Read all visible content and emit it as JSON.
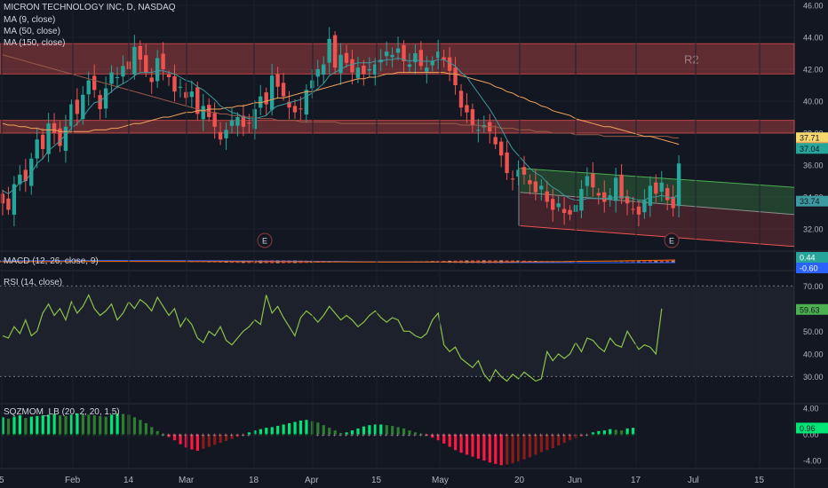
{
  "header": {
    "title": "MICRON TECHNOLOGY INC, D, NASDAQ",
    "indicators": [
      "MA (9, close)",
      "MA (50, close)",
      "MA (150, close)"
    ]
  },
  "panes": {
    "macd_label": "MACD (12, 26, close, 9)",
    "rsi_label": "RSI (14, close)",
    "sqz_label": "SQZMOM_LB (20, 2, 20, 1.5)"
  },
  "colors": {
    "background": "#131722",
    "up": "#26a69a",
    "down": "#ef5350",
    "ma9": "#3c9aa0",
    "ma50": "#f2a35b",
    "ma150": "#9c5b48",
    "rsi": "#8bc34a",
    "zone": "#ef5350",
    "channel_upper": "#4caf50",
    "channel_lower": "#ef5350"
  },
  "chart_data": [
    {
      "type": "candlestick",
      "title": "MICRON TECHNOLOGY INC, D, NASDAQ",
      "ylim": [
        31,
        46
      ],
      "yticks": [
        "46.00",
        "44.00",
        "42.00",
        "40.00",
        "38.00",
        "36.00",
        "34.00",
        "32.00"
      ],
      "xticks": [
        "5",
        "Feb",
        "14",
        "Mar",
        "18",
        "Apr",
        "15",
        "May",
        "20",
        "Jun",
        "17",
        "Jul",
        "15"
      ],
      "price_labels": [
        {
          "text": "37.71",
          "value": 37.71,
          "color": "#f5d76e"
        },
        {
          "text": "37.12",
          "value": 37.12,
          "color": "#f2a35b"
        },
        {
          "text": "37.04",
          "value": 37.04,
          "color": "#26a69a"
        },
        {
          "text": "33.74",
          "value": 33.74,
          "color": "#3c9aa0"
        }
      ],
      "zones": [
        {
          "label": "R2",
          "from": 41.7,
          "to": 43.6
        },
        {
          "label": "",
          "from": 38.0,
          "to": 38.8
        }
      ],
      "earnings_markers": [
        {
          "label": "E",
          "x": "Mar 20"
        },
        {
          "label": "E",
          "x": "Jun 25"
        }
      ],
      "channel": {
        "start": "May 20",
        "upper": [
          35.8,
          34.6
        ],
        "middle": [
          34.3,
          32.9
        ],
        "lower": [
          32.2,
          30.9
        ]
      },
      "closes": [
        33.6,
        33.2,
        34.8,
        35.4,
        35.0,
        36.4,
        37.6,
        37.0,
        38.6,
        38.0,
        37.2,
        38.4,
        39.8,
        39.2,
        40.4,
        41.3,
        40.7,
        39.5,
        40.8,
        41.8,
        41.5,
        42.2,
        42.0,
        43.4,
        42.6,
        41.8,
        41.2,
        42.7,
        42.0,
        41.5,
        40.6,
        40.9,
        40.2,
        40.6,
        39.2,
        39.7,
        39.0,
        38.4,
        37.6,
        38.2,
        38.8,
        39.0,
        38.4,
        38.6,
        39.5,
        40.3,
        39.8,
        41.6,
        40.9,
        40.3,
        39.6,
        39.3,
        39.5,
        40.7,
        41.3,
        42.0,
        42.3,
        43.9,
        42.1,
        42.9,
        42.4,
        41.8,
        42.1,
        41.7,
        42.0,
        42.3,
        42.6,
        43.1,
        42.9,
        43.3,
        42.5,
        42.3,
        43.0,
        42.2,
        42.1,
        42.5,
        43.1,
        42.6,
        41.9,
        41.0,
        39.6,
        39.3,
        38.5,
        38.2,
        38.5,
        38.1,
        37.3,
        36.6,
        35.5,
        35.1,
        35.7,
        35.4,
        34.8,
        34.3,
        34.7,
        33.7,
        33.2,
        33.6,
        33.0,
        32.9,
        33.5,
        34.5,
        35.3,
        34.6,
        34.1,
        33.7,
        34.1,
        35.2,
        33.9,
        33.6,
        33.2,
        32.9,
        33.8,
        34.7,
        34.2,
        34.9,
        33.8,
        33.3,
        36.1
      ],
      "ma9": [
        34.4,
        34.2,
        34.5,
        34.9,
        35.0,
        35.5,
        36.1,
        36.4,
        36.9,
        37.2,
        37.5,
        37.9,
        38.3,
        38.6,
        39.0,
        39.5,
        39.9,
        40.0,
        40.3,
        40.6,
        40.9,
        41.1,
        41.3,
        41.6,
        41.8,
        41.8,
        41.8,
        41.9,
        41.9,
        41.8,
        41.7,
        41.5,
        41.3,
        41.2,
        40.9,
        40.7,
        40.4,
        40.1,
        39.7,
        39.5,
        39.3,
        39.2,
        39.0,
        38.9,
        38.9,
        39.0,
        39.1,
        39.5,
        39.7,
        39.8,
        39.9,
        40.0,
        40.1,
        40.3,
        40.5,
        40.8,
        41.1,
        41.6,
        41.8,
        42.0,
        42.2,
        42.3,
        42.4,
        42.4,
        42.4,
        42.5,
        42.5,
        42.6,
        42.6,
        42.7,
        42.6,
        42.5,
        42.6,
        42.5,
        42.5,
        42.5,
        42.6,
        42.6,
        42.4,
        42.2,
        41.8,
        41.5,
        41.0,
        40.5,
        40.0,
        39.5,
        38.9,
        38.3,
        37.6,
        37.0,
        36.6,
        36.2,
        35.8,
        35.5,
        35.3,
        34.9,
        34.6,
        34.4,
        34.1,
        33.9,
        33.8,
        33.8,
        33.9,
        33.9,
        33.9,
        33.9,
        33.9,
        34.0,
        34.0,
        34.0,
        33.9,
        33.8,
        33.8,
        34.0,
        34.0,
        34.1,
        34.0,
        33.9,
        34.2
      ],
      "ma50": [
        38.6,
        38.5,
        38.5,
        38.4,
        38.4,
        38.3,
        38.3,
        38.2,
        38.2,
        38.2,
        38.1,
        38.1,
        38.1,
        38.1,
        38.1,
        38.1,
        38.2,
        38.2,
        38.2,
        38.3,
        38.3,
        38.4,
        38.5,
        38.6,
        38.6,
        38.7,
        38.8,
        38.9,
        39.0,
        39.0,
        39.1,
        39.2,
        39.3,
        39.3,
        39.4,
        39.4,
        39.5,
        39.5,
        39.5,
        39.6,
        39.6,
        39.7,
        39.7,
        39.8,
        39.9,
        39.9,
        40.0,
        40.1,
        40.2,
        40.2,
        40.3,
        40.4,
        40.5,
        40.6,
        40.6,
        40.7,
        40.8,
        40.9,
        41.0,
        41.1,
        41.2,
        41.3,
        41.4,
        41.4,
        41.5,
        41.5,
        41.6,
        41.7,
        41.7,
        41.8,
        41.8,
        41.8,
        41.8,
        41.8,
        41.8,
        41.8,
        41.8,
        41.8,
        41.7,
        41.7,
        41.6,
        41.5,
        41.4,
        41.3,
        41.2,
        41.1,
        40.9,
        40.8,
        40.6,
        40.5,
        40.3,
        40.2,
        40.0,
        39.9,
        39.7,
        39.6,
        39.4,
        39.3,
        39.2,
        39.1,
        38.9,
        38.8,
        38.7,
        38.6,
        38.5,
        38.4,
        38.4,
        38.3,
        38.2,
        38.1,
        38.0,
        37.9,
        37.8,
        37.8,
        37.7,
        37.6,
        37.5,
        37.4,
        37.3
      ],
      "ma150": [
        42.9,
        42.8,
        42.7,
        42.6,
        42.5,
        42.4,
        42.3,
        42.2,
        42.1,
        42.0,
        41.9,
        41.8,
        41.7,
        41.6,
        41.5,
        41.4,
        41.3,
        41.2,
        41.1,
        41.0,
        40.9,
        40.8,
        40.7,
        40.6,
        40.5,
        40.4,
        40.3,
        40.2,
        40.1,
        40.0,
        39.9,
        39.8,
        39.7,
        39.6,
        39.5,
        39.4,
        39.3,
        39.3,
        39.2,
        39.2,
        39.1,
        39.1,
        39.0,
        39.0,
        39.0,
        38.9,
        38.9,
        38.9,
        38.8,
        38.8,
        38.8,
        38.8,
        38.7,
        38.7,
        38.7,
        38.7,
        38.7,
        38.7,
        38.7,
        38.6,
        38.6,
        38.6,
        38.6,
        38.6,
        38.6,
        38.6,
        38.6,
        38.6,
        38.6,
        38.6,
        38.6,
        38.6,
        38.6,
        38.6,
        38.6,
        38.6,
        38.6,
        38.6,
        38.6,
        38.6,
        38.5,
        38.5,
        38.5,
        38.5,
        38.4,
        38.4,
        38.4,
        38.3,
        38.3,
        38.3,
        38.2,
        38.2,
        38.2,
        38.1,
        38.1,
        38.1,
        38.0,
        38.0,
        38.0,
        38.0,
        37.9,
        37.9,
        37.9,
        37.9,
        37.9,
        37.8,
        37.8,
        37.8,
        37.8,
        37.8,
        37.8,
        37.8,
        37.8,
        37.8,
        37.8,
        37.8,
        37.8,
        37.7,
        37.7
      ]
    },
    {
      "type": "line",
      "title": "MACD (12, 26, close, 9)",
      "price_labels": [
        {
          "text": "0.44",
          "value": 0.44,
          "color": "#26a69a"
        },
        {
          "text": "-0.60",
          "value": -0.6,
          "color": "#2962ff"
        }
      ]
    },
    {
      "type": "line",
      "title": "RSI (14, close)",
      "ylim": [
        18,
        76
      ],
      "yticks": [
        "70.00",
        "60.00",
        "50.00",
        "40.00",
        "30.00"
      ],
      "bands": [
        30,
        70
      ],
      "last_label": {
        "text": "59.63",
        "value": 59.63
      },
      "values": [
        48,
        47,
        52,
        49,
        55,
        48,
        50,
        58,
        62,
        57,
        60,
        55,
        63,
        58,
        61,
        66,
        60,
        57,
        59,
        62,
        55,
        58,
        63,
        60,
        64,
        62,
        59,
        65,
        61,
        57,
        60,
        52,
        56,
        53,
        47,
        45,
        50,
        48,
        52,
        46,
        44,
        47,
        50,
        52,
        55,
        53,
        66,
        58,
        61,
        56,
        52,
        48,
        56,
        59,
        57,
        54,
        57,
        61,
        58,
        55,
        57,
        55,
        52,
        54,
        57,
        59,
        56,
        54,
        56,
        55,
        50,
        50,
        48,
        47,
        49,
        55,
        58,
        44,
        41,
        43,
        38,
        36,
        34,
        37,
        31,
        28,
        33,
        30,
        28,
        31,
        29,
        32,
        30,
        28,
        29,
        41,
        37,
        40,
        38,
        40,
        45,
        41,
        47,
        46,
        43,
        41,
        47,
        44,
        43,
        50,
        46,
        42,
        44,
        43,
        40,
        60
      ],
      "series": [
        {
          "name": "",
          "values": []
        }
      ]
    },
    {
      "type": "bar",
      "title": "SQZMOM_LB (20, 2, 20, 1.5)",
      "ylim": [
        -5.2,
        4.4
      ],
      "yticks": [
        "4.00",
        "0.00",
        "-4.00"
      ],
      "last_label": {
        "text": "0.96",
        "value": 0.96
      },
      "values": [
        2.6,
        2.4,
        2.7,
        2.9,
        2.5,
        2.7,
        2.8,
        2.9,
        3.0,
        3.1,
        2.9,
        2.8,
        3.0,
        3.2,
        3.1,
        3.0,
        2.9,
        2.8,
        2.7,
        3.0,
        3.2,
        3.1,
        3.0,
        2.6,
        2.2,
        1.7,
        1.1,
        0.5,
        0.1,
        -0.4,
        -0.9,
        -1.5,
        -2.0,
        -2.3,
        -2.5,
        -2.2,
        -1.9,
        -1.6,
        -1.3,
        -1.0,
        -0.7,
        -0.4,
        -0.2,
        0.3,
        0.6,
        0.8,
        1.0,
        1.1,
        1.3,
        1.5,
        1.7,
        1.9,
        2.1,
        2.2,
        2.0,
        1.8,
        1.4,
        1.0,
        0.6,
        0.2,
        0.3,
        0.6,
        0.9,
        1.2,
        1.4,
        1.5,
        1.5,
        1.4,
        1.3,
        1.1,
        0.9,
        0.6,
        0.3,
        0.1,
        -0.2,
        -0.5,
        -0.9,
        -1.4,
        -1.9,
        -2.4,
        -2.8,
        -3.1,
        -3.4,
        -3.7,
        -4.0,
        -4.3,
        -4.5,
        -4.7,
        -4.6,
        -4.4,
        -4.1,
        -3.8,
        -3.5,
        -3.1,
        -2.7,
        -2.4,
        -2.1,
        -1.7,
        -1.3,
        -0.9,
        -0.6,
        -0.3,
        -0.1,
        0.3,
        0.5,
        0.6,
        0.8,
        0.7,
        0.6,
        0.9,
        1.0
      ],
      "squeeze_on": [
        28,
        29,
        30,
        31,
        32,
        33,
        34,
        35,
        36,
        37,
        38,
        39,
        40,
        41,
        42,
        43,
        55,
        56,
        57,
        58,
        59,
        60,
        61,
        62,
        63,
        64,
        65,
        66,
        67,
        68,
        69,
        70,
        71,
        72,
        73,
        74,
        75,
        76,
        77,
        78,
        79,
        80,
        81,
        82,
        83,
        84,
        85,
        86,
        87,
        88,
        89,
        90,
        91,
        92,
        93,
        94,
        95,
        96,
        97,
        98,
        99,
        100,
        101,
        102
      ]
    }
  ]
}
